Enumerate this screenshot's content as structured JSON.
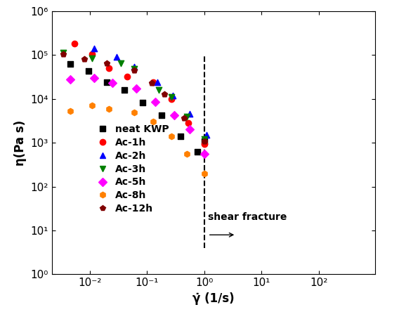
{
  "chart_data": {
    "type": "scatter",
    "x_label": "γ̇ (1/s)",
    "y_label": "η(Pa s)",
    "log": true,
    "grid": false,
    "legend": "center left",
    "xlim": [
      0.0022,
      950
    ],
    "ylim": [
      1,
      1000000
    ],
    "xticks": [
      {
        "value": 0.01,
        "label": "10⁻²"
      },
      {
        "value": 0.1,
        "label": "10⁻¹"
      },
      {
        "value": 1,
        "label": "10⁰"
      },
      {
        "value": 10,
        "label": "10¹"
      },
      {
        "value": 100,
        "label": "10²"
      }
    ],
    "yticks": [
      {
        "value": 1,
        "label": "10⁰"
      },
      {
        "value": 10,
        "label": "10¹"
      },
      {
        "value": 100,
        "label": "10²"
      },
      {
        "value": 1000,
        "label": "10³"
      },
      {
        "value": 10000,
        "label": "10⁴"
      },
      {
        "value": 100000,
        "label": "10⁵"
      },
      {
        "value": 1000000,
        "label": "10⁶"
      }
    ],
    "fracture_rate": 1,
    "annotation": "shear fracture",
    "series": [
      {
        "name": "neat KWP",
        "color": "#000000",
        "marker": "square",
        "x": [
          0.0046,
          0.0097,
          0.02,
          0.04,
          0.085,
          0.18,
          0.38,
          0.75,
          1.0
        ],
        "values": [
          63000,
          43000,
          24000,
          16000,
          8300,
          4300,
          1400,
          620,
          1100
        ]
      },
      {
        "name": "Ac-1h",
        "color": "#ff0000",
        "marker": "circle",
        "x": [
          0.0055,
          0.011,
          0.022,
          0.045,
          0.13,
          0.27,
          0.52,
          1.0
        ],
        "values": [
          180000,
          105000,
          50000,
          32000,
          24000,
          10000,
          2800,
          950
        ]
      },
      {
        "name": "Ac-2h",
        "color": "#0000ff",
        "marker": "triangle_up",
        "x": [
          0.012,
          0.03,
          0.06,
          0.15,
          0.28,
          0.55,
          1.1
        ],
        "values": [
          140000,
          90000,
          55000,
          24000,
          12000,
          4500,
          1500
        ]
      },
      {
        "name": "Ac-3h",
        "color": "#008000",
        "marker": "triangle_down",
        "x": [
          0.0035,
          0.011,
          0.035,
          0.06,
          0.16,
          0.27,
          0.5,
          1.0
        ],
        "values": [
          115000,
          85000,
          65000,
          48000,
          16000,
          11000,
          4000,
          1200
        ]
      },
      {
        "name": "Ac-5h",
        "color": "#ff00ff",
        "marker": "diamond",
        "x": [
          0.0046,
          0.012,
          0.025,
          0.065,
          0.14,
          0.3,
          0.55,
          1.0
        ],
        "values": [
          28000,
          30000,
          23000,
          17000,
          8500,
          4200,
          2000,
          550
        ]
      },
      {
        "name": "Ac-8h",
        "color": "#ff8000",
        "marker": "hexagon",
        "x": [
          0.0046,
          0.011,
          0.022,
          0.06,
          0.13,
          0.27,
          0.5,
          1.0
        ],
        "values": [
          5200,
          7000,
          6000,
          5000,
          3000,
          1400,
          550,
          200
        ]
      },
      {
        "name": "Ac-12h",
        "color": "#800000",
        "marker": "pentagon",
        "x": [
          0.0035,
          0.008,
          0.02,
          0.06,
          0.12,
          0.2,
          0.45,
          1.0
        ],
        "values": [
          105000,
          80000,
          65000,
          45000,
          23000,
          13000,
          3700,
          1100
        ]
      }
    ]
  }
}
